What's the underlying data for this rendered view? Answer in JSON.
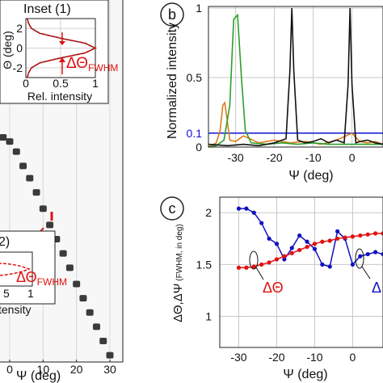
{
  "chart_data": [
    {
      "panel": "a",
      "type": "heatmap",
      "xlabel": "Ψ (deg)",
      "x_ticks": [
        "0",
        "10",
        "20",
        "30"
      ],
      "xlim": [
        -15,
        32
      ],
      "spots": [
        {
          "x": -4,
          "y": 9.5
        },
        {
          "x": -2,
          "y": 9.3
        },
        {
          "x": 0,
          "y": 9.1
        },
        {
          "x": 2,
          "y": 8.6
        },
        {
          "x": 4,
          "y": 7.9
        },
        {
          "x": 6,
          "y": 7.3
        },
        {
          "x": 8,
          "y": 6.6
        },
        {
          "x": 10,
          "y": 5.8
        },
        {
          "x": 12,
          "y": 5.0
        },
        {
          "x": 14,
          "y": 4.3
        },
        {
          "x": 16,
          "y": 3.6
        },
        {
          "x": 18,
          "y": 2.9
        },
        {
          "x": 20,
          "y": 2.1
        },
        {
          "x": 22,
          "y": 1.4
        },
        {
          "x": 24,
          "y": 0.7
        },
        {
          "x": 26,
          "y": 0.0
        },
        {
          "x": 28,
          "y": -0.7
        },
        {
          "x": 30,
          "y": -1.4
        },
        {
          "x": 30.5,
          "y": 17.8
        },
        {
          "x": 31.2,
          "y": 17.2
        }
      ],
      "inset1": {
        "title": "Inset (1)",
        "ylabel": "Θ (deg)",
        "xlabel": "Rel. intensity",
        "x_ticks": [
          "0",
          "0.5",
          "1"
        ],
        "y_ticks": [
          "2",
          "0",
          "-2"
        ],
        "annotation": "ΔΘ",
        "annotation_sub": "FWHM",
        "profile_theta": [
          -3,
          -2.5,
          -2,
          -1.5,
          -1,
          -0.5,
          0,
          0.5,
          1,
          1.5,
          2,
          2.5,
          3
        ],
        "profile_intensity": [
          0.02,
          0.04,
          0.08,
          0.2,
          0.5,
          0.85,
          1.0,
          0.85,
          0.5,
          0.2,
          0.08,
          0.04,
          0.02
        ]
      },
      "inset2": {
        "title": "2)",
        "xlabel": "tensity",
        "x_ticks": [
          "5",
          "1"
        ],
        "annotation": "ΔΘ",
        "annotation_sub": "FWHM"
      }
    },
    {
      "panel": "b",
      "type": "line",
      "xlabel": "Ψ (deg)",
      "ylabel": "Normalized intensity",
      "xlim": [
        -37,
        8
      ],
      "ylim": [
        0,
        1
      ],
      "x_ticks": [
        -30,
        -20,
        -10,
        0
      ],
      "y_ticks": [
        0,
        0.1,
        0.5,
        1
      ],
      "threshold": {
        "value": 0.1,
        "label": "0.1",
        "color": "#1010d0"
      },
      "series": [
        {
          "color": "#111111",
          "x": [
            -37,
            -32,
            -28,
            -24,
            -20,
            -17,
            -16,
            -15.5,
            -15,
            -14,
            -12,
            -10,
            -8,
            -6,
            -4,
            -2,
            -1,
            -0.5,
            0,
            1,
            2,
            4,
            6,
            8
          ],
          "y": [
            0.02,
            0.01,
            0.02,
            0.01,
            0.03,
            0.06,
            0.55,
            1.0,
            0.55,
            0.05,
            0.03,
            0.04,
            0.06,
            0.03,
            0.05,
            0.03,
            0.45,
            1.0,
            0.45,
            0.03,
            0.04,
            0.05,
            0.03,
            0.02
          ]
        },
        {
          "color": "#2aa02a",
          "x": [
            -37,
            -35,
            -33,
            -31.5,
            -30.5,
            -29.5,
            -28.5,
            -27.5,
            -26,
            -22,
            -18,
            -14,
            -10,
            -6,
            -2,
            2,
            6,
            8
          ],
          "y": [
            0.0,
            0.01,
            0.05,
            0.3,
            0.92,
            0.95,
            0.5,
            0.12,
            0.03,
            0.02,
            0.03,
            0.02,
            0.03,
            0.02,
            0.02,
            0.02,
            0.02,
            0.02
          ]
        },
        {
          "color": "#e07b1a",
          "x": [
            -37,
            -35,
            -34,
            -33.3,
            -32.8,
            -32.2,
            -31.5,
            -30,
            -28,
            -24,
            -20,
            -16,
            -12,
            -8,
            -4,
            0,
            2,
            4,
            6,
            8
          ],
          "y": [
            0.0,
            0.03,
            0.12,
            0.3,
            0.32,
            0.2,
            0.05,
            0.04,
            0.08,
            0.03,
            0.05,
            0.03,
            0.04,
            0.02,
            0.05,
            0.1,
            0.04,
            0.03,
            0.04,
            0.02
          ]
        }
      ]
    },
    {
      "panel": "c",
      "type": "line",
      "xlabel": "Ψ (deg)",
      "ylabel": "ΔΘ,ΔΨ",
      "ylabel_small": "(FWHM, in deg)",
      "xlim": [
        -35,
        8
      ],
      "ylim": [
        0.7,
        2.15
      ],
      "x_ticks": [
        -30,
        -20,
        -10,
        0
      ],
      "y_ticks": [
        1,
        1.5,
        2
      ],
      "series": [
        {
          "name": "ΔΘ",
          "color": "#e01010",
          "x": [
            -30,
            -28,
            -26,
            -24,
            -22,
            -20,
            -18,
            -16,
            -14,
            -12,
            -10,
            -8,
            -6,
            -4,
            -2,
            0,
            2,
            4,
            6,
            8
          ],
          "y": [
            1.47,
            1.47,
            1.48,
            1.5,
            1.52,
            1.55,
            1.58,
            1.61,
            1.64,
            1.67,
            1.7,
            1.72,
            1.73,
            1.75,
            1.76,
            1.77,
            1.78,
            1.79,
            1.8,
            1.8
          ]
        },
        {
          "name": "ΔΨ",
          "color": "#1010c0",
          "x": [
            -30,
            -28,
            -26,
            -24,
            -22,
            -20,
            -18,
            -16,
            -14,
            -12,
            -10,
            -8,
            -6,
            -4,
            -2,
            0,
            2,
            4,
            6,
            8
          ],
          "y": [
            2.04,
            2.04,
            2.0,
            1.9,
            1.75,
            1.7,
            1.55,
            1.66,
            1.78,
            1.72,
            1.65,
            1.5,
            1.48,
            1.82,
            1.75,
            1.5,
            1.58,
            1.6,
            1.62,
            1.6
          ]
        }
      ]
    }
  ],
  "labels": {
    "panel_b": "b",
    "panel_c": "c",
    "annot_theta": "ΔΘ",
    "annot_psi_partial": "Δ"
  }
}
